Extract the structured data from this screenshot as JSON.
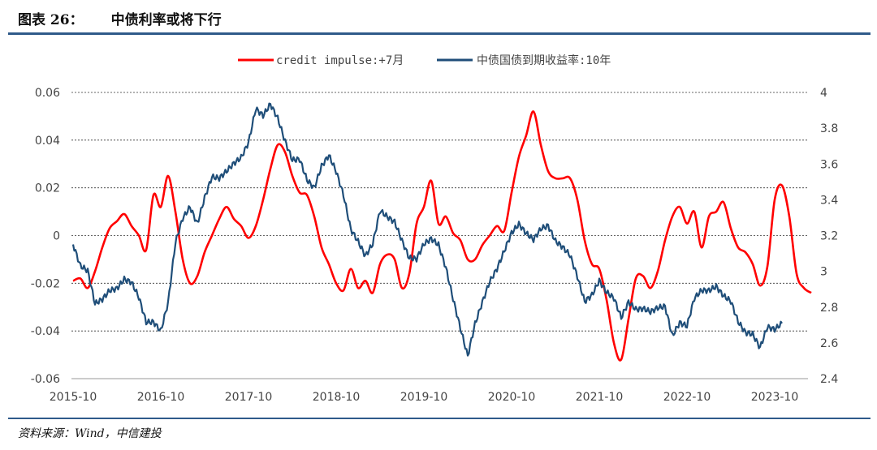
{
  "header": {
    "figure_label": "图表 26：",
    "title": "中债利率或将下行"
  },
  "footer": {
    "source": "资料来源：Wind，中信建投"
  },
  "chart_data": {
    "type": "line",
    "title": "中债利率或将下行",
    "legend_placement": "top-center",
    "grid": "horizontal dashed",
    "x_ticks": [
      "2015-10",
      "2016-10",
      "2017-10",
      "2018-10",
      "2019-10",
      "2020-10",
      "2021-10",
      "2022-10",
      "2023-10"
    ],
    "x_start": "2015-10",
    "left_axis": {
      "ylim": [
        -0.06,
        0.06
      ],
      "ticks": [
        "0.06",
        "0.04",
        "0.02",
        "0",
        "-0.02",
        "-0.04",
        "-0.06"
      ]
    },
    "right_axis": {
      "ylim": [
        2.4,
        4.0
      ],
      "ticks": [
        "4",
        "3.8",
        "3.6",
        "3.4",
        "3.2",
        "3",
        "2.8",
        "2.6",
        "2.4"
      ]
    },
    "series": [
      {
        "name": "credit impulse:+7月",
        "axis": "left",
        "color": "#ff0000",
        "start": "2015-10",
        "values": [
          -0.019,
          -0.018,
          -0.022,
          -0.015,
          -0.005,
          0.003,
          0.006,
          0.009,
          0.004,
          0.0,
          -0.006,
          0.017,
          0.012,
          0.025,
          0.01,
          -0.01,
          -0.02,
          -0.017,
          -0.007,
          0.0,
          0.007,
          0.012,
          0.007,
          0.004,
          -0.001,
          0.004,
          0.015,
          0.028,
          0.038,
          0.035,
          0.025,
          0.018,
          0.017,
          0.008,
          -0.005,
          -0.012,
          -0.02,
          -0.023,
          -0.014,
          -0.022,
          -0.019,
          -0.024,
          -0.012,
          -0.008,
          -0.01,
          -0.022,
          -0.016,
          0.005,
          0.012,
          0.023,
          0.005,
          0.008,
          0.001,
          -0.002,
          -0.01,
          -0.01,
          -0.004,
          0.0,
          0.004,
          0.002,
          0.018,
          0.033,
          0.042,
          0.052,
          0.038,
          0.027,
          0.024,
          0.024,
          0.024,
          0.015,
          -0.002,
          -0.012,
          -0.014,
          -0.027,
          -0.045,
          -0.052,
          -0.035,
          -0.018,
          -0.017,
          -0.022,
          -0.015,
          -0.002,
          0.008,
          0.012,
          0.005,
          0.01,
          -0.005,
          0.008,
          0.01,
          0.014,
          0.003,
          -0.005,
          -0.007,
          -0.012,
          -0.021,
          -0.013,
          0.015,
          0.021,
          0.008,
          -0.016,
          -0.022,
          -0.024
        ]
      },
      {
        "name": "中债国债到期收益率:10年",
        "axis": "right",
        "color": "#1f4e79",
        "start": "2015-10",
        "values": [
          3.15,
          3.05,
          3.0,
          2.85,
          2.82,
          2.9,
          2.88,
          2.95,
          2.95,
          2.85,
          2.75,
          2.7,
          2.68,
          2.8,
          3.15,
          3.3,
          3.35,
          3.3,
          3.4,
          3.55,
          3.5,
          3.55,
          3.6,
          3.62,
          3.75,
          3.9,
          3.9,
          3.92,
          3.85,
          3.72,
          3.6,
          3.65,
          3.5,
          3.5,
          3.58,
          3.65,
          3.55,
          3.4,
          3.25,
          3.15,
          3.12,
          3.15,
          3.35,
          3.3,
          3.25,
          3.18,
          3.05,
          3.1,
          3.15,
          3.2,
          3.15,
          3.0,
          2.85,
          2.65,
          2.55,
          2.7,
          2.85,
          2.95,
          3.0,
          3.12,
          3.18,
          3.28,
          3.2,
          3.2,
          3.25,
          3.25,
          3.18,
          3.1,
          3.1,
          2.95,
          2.85,
          2.88,
          2.95,
          2.9,
          2.82,
          2.75,
          2.8,
          2.8,
          2.8,
          2.78,
          2.82,
          2.78,
          2.65,
          2.68,
          2.7,
          2.85,
          2.9,
          2.92,
          2.9,
          2.88,
          2.8,
          2.72,
          2.65,
          2.65,
          2.6,
          2.68,
          2.7,
          2.68
        ]
      }
    ]
  }
}
